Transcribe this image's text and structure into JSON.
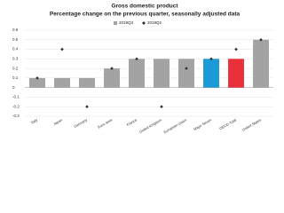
{
  "chart_data": {
    "type": "bar",
    "title": "Gross domestic product",
    "subtitle": "Percentage change on the previous quarter, seasonally adjusted data",
    "categories": [
      "Italy",
      "Japan",
      "Germany",
      "Euro area",
      "France",
      "United Kingdom",
      "European Union",
      "Major Seven",
      "OECD Total",
      "United States"
    ],
    "series": [
      {
        "name": "2019Q3",
        "color": "#a3a3a3",
        "colors": [
          "#a3a3a3",
          "#a3a3a3",
          "#a3a3a3",
          "#a3a3a3",
          "#a3a3a3",
          "#a3a3a3",
          "#a3a3a3",
          "#1a9bd7",
          "#e8303a",
          "#a3a3a3"
        ],
        "values": [
          0.1,
          0.1,
          0.1,
          0.2,
          0.3,
          0.3,
          0.3,
          0.3,
          0.3,
          0.5
        ]
      },
      {
        "name": "2019Q2",
        "color": "#333333",
        "marker": "diamond",
        "values": [
          0.1,
          0.4,
          -0.2,
          0.2,
          0.3,
          -0.2,
          0.2,
          0.3,
          0.4,
          0.5
        ]
      }
    ],
    "ylim": [
      -0.3,
      0.6
    ],
    "yticks": [
      -0.3,
      -0.2,
      -0.1,
      0,
      0.1,
      0.2,
      0.3,
      0.4,
      0.5,
      0.6
    ],
    "grid": true
  }
}
